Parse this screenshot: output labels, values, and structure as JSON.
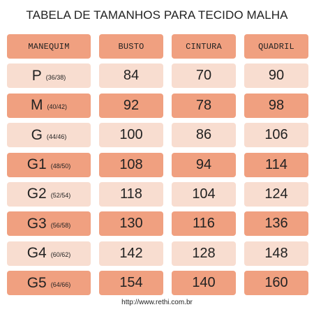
{
  "title": "TABELA DE TAMANHOS PARA TECIDO MALHA",
  "headers": [
    "MANEQUIM",
    "BUSTO",
    "CINTURA",
    "QUADRIL"
  ],
  "rows": [
    {
      "size": "P",
      "range": "(36/38)",
      "busto": "84",
      "cintura": "70",
      "quadril": "90",
      "shade": "light"
    },
    {
      "size": "M",
      "range": "(40/42)",
      "busto": "92",
      "cintura": "78",
      "quadril": "98",
      "shade": "dark"
    },
    {
      "size": "G",
      "range": "(44/46)",
      "busto": "100",
      "cintura": "86",
      "quadril": "106",
      "shade": "light"
    },
    {
      "size": "G1",
      "range": "(48/50)",
      "busto": "108",
      "cintura": "94",
      "quadril": "114",
      "shade": "dark"
    },
    {
      "size": "G2",
      "range": "(52/54)",
      "busto": "118",
      "cintura": "104",
      "quadril": "124",
      "shade": "light"
    },
    {
      "size": "G3",
      "range": "(56/58)",
      "busto": "130",
      "cintura": "116",
      "quadril": "136",
      "shade": "dark"
    },
    {
      "size": "G4",
      "range": "(60/62)",
      "busto": "142",
      "cintura": "128",
      "quadril": "148",
      "shade": "light"
    },
    {
      "size": "G5",
      "range": "(64/66)",
      "busto": "154",
      "cintura": "140",
      "quadril": "160",
      "shade": "dark"
    }
  ],
  "footer": "http://www.rethi.com.br",
  "colors": {
    "dark": "#f0a080",
    "light": "#f8ddd0",
    "text": "#222222"
  }
}
